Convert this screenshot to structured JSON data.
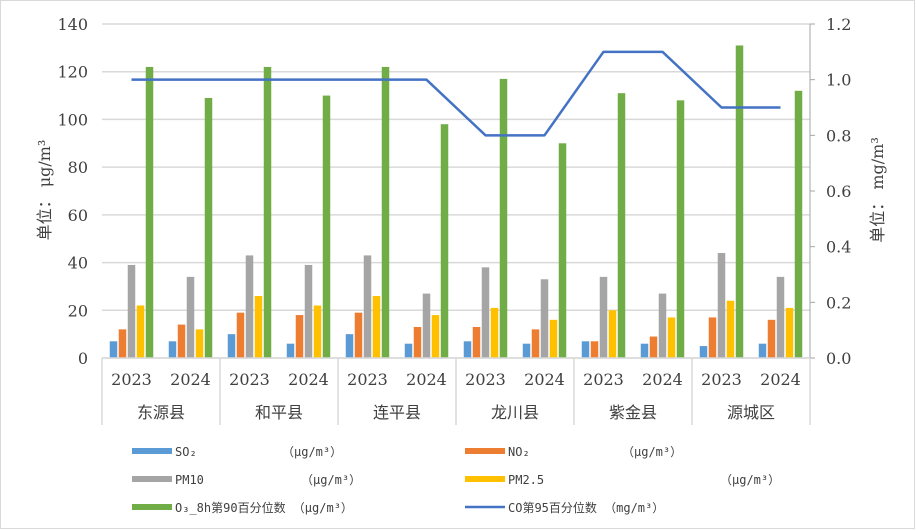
{
  "chart_data": {
    "type": "bar",
    "title": "",
    "xlabel": "",
    "ylabel": "单位： μg/m³",
    "y2label": "单位： mg/m³",
    "ylim": [
      0,
      140
    ],
    "y2lim": [
      0,
      1.2
    ],
    "yticks": [
      0,
      20,
      40,
      60,
      80,
      100,
      120,
      140
    ],
    "y2ticks": [
      "0.0",
      "0.2",
      "0.4",
      "0.6",
      "0.8",
      "1.0",
      "1.2"
    ],
    "grid": true,
    "legend_position": "bottom",
    "groups": [
      "东源县",
      "和平县",
      "连平县",
      "龙川县",
      "紫金县",
      "源城区"
    ],
    "years": [
      "2023",
      "2024"
    ],
    "categories": [
      "东源县 2023",
      "东源县 2024",
      "和平县 2023",
      "和平县 2024",
      "连平县 2023",
      "连平县 2024",
      "龙川县 2023",
      "龙川县 2024",
      "紫金县 2023",
      "紫金县 2024",
      "源城区 2023",
      "源城区 2024"
    ],
    "series": [
      {
        "name": "SO₂ (μg/m³)",
        "type": "bar",
        "axis": "left",
        "color": "#5b9bd5",
        "values": [
          7,
          7,
          10,
          6,
          10,
          6,
          7,
          6,
          7,
          6,
          5,
          6
        ]
      },
      {
        "name": "NO₂ (μg/m³)",
        "type": "bar",
        "axis": "left",
        "color": "#ed7d31",
        "values": [
          12,
          14,
          19,
          18,
          19,
          13,
          13,
          12,
          7,
          9,
          17,
          16
        ]
      },
      {
        "name": "PM10 (μg/m³)",
        "type": "bar",
        "axis": "left",
        "color": "#a5a5a5",
        "values": [
          39,
          34,
          43,
          39,
          43,
          27,
          38,
          33,
          34,
          27,
          44,
          34
        ]
      },
      {
        "name": "PM2.5 (μg/m³)",
        "type": "bar",
        "axis": "left",
        "color": "#ffc000",
        "values": [
          22,
          12,
          26,
          22,
          26,
          18,
          21,
          16,
          20,
          17,
          24,
          21
        ]
      },
      {
        "name": "O₃_8h第90百分位数 (μg/m³)",
        "type": "bar",
        "axis": "left",
        "color": "#70ad47",
        "values": [
          122,
          109,
          122,
          110,
          122,
          98,
          117,
          90,
          111,
          108,
          131,
          112
        ]
      },
      {
        "name": "CO第95百分位数 (mg/m³)",
        "type": "line",
        "axis": "right",
        "color": "#4472c4",
        "values": [
          1.0,
          1.0,
          1.0,
          1.0,
          1.0,
          1.0,
          0.8,
          0.8,
          1.1,
          1.1,
          0.9,
          0.9
        ]
      }
    ]
  },
  "legend": {
    "items": [
      {
        "name": "SO₂",
        "unit": "（μg/m³）",
        "color": "#5b9bd5",
        "kind": "bar"
      },
      {
        "name": "NO₂",
        "unit": "（μg/m³）",
        "color": "#ed7d31",
        "kind": "bar"
      },
      {
        "name": "PM10",
        "unit": "（μg/m³）",
        "color": "#a5a5a5",
        "kind": "bar"
      },
      {
        "name": "PM2.5",
        "unit": "（μg/m³）",
        "color": "#ffc000",
        "kind": "bar"
      },
      {
        "name": "O₃_8h第90百分位数",
        "unit": "（μg/m³）",
        "color": "#70ad47",
        "kind": "bar"
      },
      {
        "name": "CO第95百分位数",
        "unit": "（mg/m³）",
        "color": "#4472c4",
        "kind": "line"
      }
    ]
  }
}
